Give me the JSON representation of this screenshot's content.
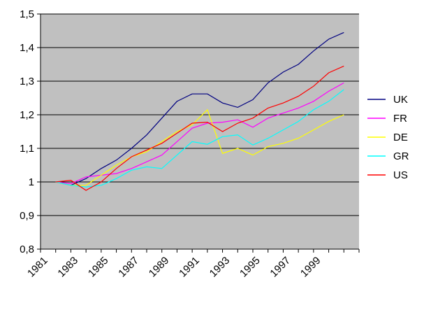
{
  "chart_data": {
    "type": "line",
    "title": "",
    "xlabel": "",
    "ylabel": "",
    "ylim": [
      0.8,
      1.5
    ],
    "yticks": [
      0.8,
      0.9,
      1.0,
      1.1,
      1.2,
      1.3,
      1.4,
      1.5
    ],
    "ytick_labels": [
      "0,8",
      "0,9",
      "1",
      "1,1",
      "1,2",
      "1,3",
      "1,4",
      "1,5"
    ],
    "xlim": [
      1981,
      2002
    ],
    "xtick_labels": [
      "1981",
      "1983",
      "1985",
      "1987",
      "1989",
      "1991",
      "1993",
      "1995",
      "1997",
      "1999"
    ],
    "grid": "horizontal",
    "legend_position": "right",
    "plot_background": "#c0c0c0",
    "x": [
      1982,
      1983,
      1984,
      1985,
      1986,
      1987,
      1988,
      1989,
      1990,
      1991,
      1992,
      1993,
      1994,
      1995,
      1996,
      1997,
      1998,
      1999,
      2000,
      2001,
      2002
    ],
    "series": [
      {
        "name": "UK",
        "color": "#000080",
        "values": [
          1.0,
          0.99,
          1.01,
          1.04,
          1.065,
          1.1,
          1.14,
          1.19,
          1.24,
          1.262,
          1.262,
          1.235,
          1.222,
          1.245,
          1.295,
          1.327,
          1.35,
          1.39,
          1.425,
          1.445,
          null
        ]
      },
      {
        "name": "FR",
        "color": "#ff00ff",
        "values": [
          1.0,
          0.995,
          1.015,
          1.02,
          1.025,
          1.04,
          1.06,
          1.08,
          1.12,
          1.16,
          1.175,
          1.178,
          1.185,
          1.163,
          1.19,
          1.205,
          1.22,
          1.24,
          1.27,
          1.295,
          null
        ]
      },
      {
        "name": "DE",
        "color": "#ffff00",
        "values": [
          1.0,
          0.99,
          0.99,
          1.02,
          1.05,
          1.075,
          1.09,
          1.12,
          1.15,
          1.17,
          1.215,
          1.085,
          1.1,
          1.08,
          1.105,
          1.115,
          1.13,
          1.155,
          1.18,
          1.2,
          null
        ]
      },
      {
        "name": "GR",
        "color": "#00ffff",
        "values": [
          1.0,
          0.99,
          0.985,
          0.99,
          1.01,
          1.035,
          1.045,
          1.04,
          1.08,
          1.12,
          1.112,
          1.135,
          1.14,
          1.11,
          1.13,
          1.155,
          1.18,
          1.215,
          1.24,
          1.275,
          null
        ]
      },
      {
        "name": "US",
        "color": "#ff0000",
        "values": [
          1.0,
          1.005,
          0.975,
          1.0,
          1.04,
          1.075,
          1.095,
          1.115,
          1.145,
          1.175,
          1.178,
          1.15,
          1.175,
          1.19,
          1.22,
          1.235,
          1.255,
          1.285,
          1.325,
          1.345,
          null
        ]
      }
    ]
  }
}
